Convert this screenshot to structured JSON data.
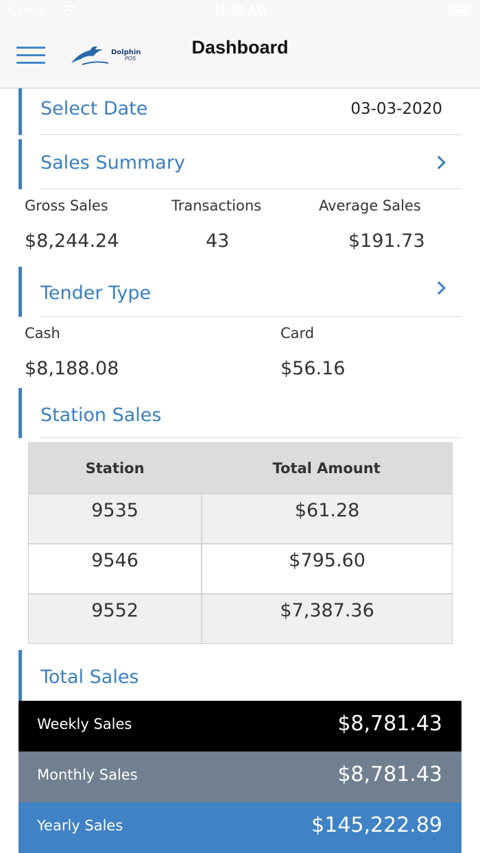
{
  "status": {
    "carrier": "Carrier",
    "time": "11:22 AM"
  },
  "nav": {
    "title": "Dashboard",
    "logo_text": "Dolphin",
    "logo_sub": "POS"
  },
  "select_date": {
    "title": "Select Date",
    "value": "03-03-2020"
  },
  "sales_summary": {
    "title": "Sales Summary",
    "gross_label": "Gross Sales",
    "gross_value": "$8,244.24",
    "transactions_label": "Transactions",
    "transactions_value": "43",
    "average_label": "Average Sales",
    "average_value": "$191.73"
  },
  "tender_type": {
    "title": "Tender Type",
    "cash_label": "Cash",
    "cash_value": "$8,188.08",
    "card_label": "Card",
    "card_value": "$56.16"
  },
  "station_sales": {
    "title": "Station Sales",
    "columns": [
      "Station",
      "Total Amount"
    ],
    "rows": [
      {
        "station": "9535",
        "amount": "$61.28"
      },
      {
        "station": "9546",
        "amount": "$795.60"
      },
      {
        "station": "9552",
        "amount": "$7,387.36"
      }
    ]
  },
  "total_sales": {
    "title": "Total Sales",
    "weekly_label": "Weekly Sales",
    "weekly_value": "$8,781.43",
    "monthly_label": "Monthly Sales",
    "monthly_value": "$8,781.43",
    "yearly_label": "Yearly Sales",
    "yearly_value": "$145,222.89"
  },
  "colors": {
    "accent": "#3e7fc1",
    "weekly_bg": "#000000",
    "monthly_bg": "#718090",
    "yearly_bg": "#3f82c5"
  },
  "icons": [
    "wifi-icon",
    "battery-icon",
    "menu-icon",
    "chevron-right-icon"
  ]
}
